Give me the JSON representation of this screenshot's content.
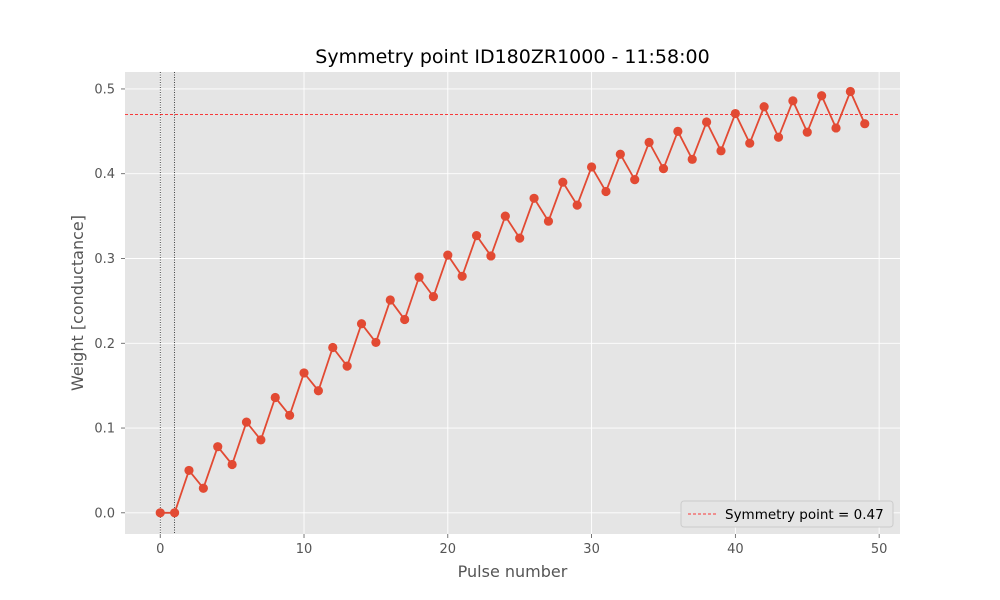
{
  "chart_data": {
    "type": "line",
    "title": "Symmetry point ID180ZR1000 - 11:58:00",
    "xlabel": "Pulse number",
    "ylabel": "Weight [conductance]",
    "xlim": [
      -2.45,
      51.45
    ],
    "ylim": [
      -0.025,
      0.52
    ],
    "xticks": [
      0,
      10,
      20,
      30,
      40,
      50
    ],
    "yticks": [
      0.0,
      0.1,
      0.2,
      0.3,
      0.4,
      0.5
    ],
    "grid": true,
    "series": [
      {
        "color": "#E24A33",
        "marker": "circle",
        "x": [
          0,
          1,
          2,
          3,
          4,
          5,
          6,
          7,
          8,
          9,
          10,
          11,
          12,
          13,
          14,
          15,
          16,
          17,
          18,
          19,
          20,
          21,
          22,
          23,
          24,
          25,
          26,
          27,
          28,
          29,
          30,
          31,
          32,
          33,
          34,
          35,
          36,
          37,
          38,
          39,
          40,
          41,
          42,
          43,
          44,
          45,
          46,
          47,
          48,
          49
        ],
        "values": [
          0.0,
          0.0,
          0.05,
          0.029,
          0.078,
          0.057,
          0.107,
          0.086,
          0.136,
          0.115,
          0.165,
          0.144,
          0.195,
          0.173,
          0.223,
          0.201,
          0.251,
          0.228,
          0.278,
          0.255,
          0.304,
          0.279,
          0.327,
          0.303,
          0.35,
          0.324,
          0.371,
          0.344,
          0.39,
          0.363,
          0.408,
          0.379,
          0.423,
          0.393,
          0.437,
          0.406,
          0.45,
          0.417,
          0.461,
          0.427,
          0.471,
          0.436,
          0.479,
          0.443,
          0.486,
          0.449,
          0.492,
          0.454,
          0.497,
          0.459
        ]
      }
    ],
    "hlines": [
      {
        "y": 0.47,
        "color": "#ff0000",
        "style": "dashed",
        "label": "Symmetry point = 0.47"
      }
    ],
    "vlines": [
      {
        "x": 0,
        "color": "#000000",
        "style": "dotted"
      },
      {
        "x": 1,
        "color": "#000000",
        "style": "dotted"
      }
    ],
    "legend": {
      "placement": "lower-right",
      "entries": [
        "Symmetry point = 0.47"
      ]
    },
    "colors": {
      "axes_bg": "#E5E5E5",
      "grid": "#FFFFFF",
      "text": "#555555"
    }
  }
}
